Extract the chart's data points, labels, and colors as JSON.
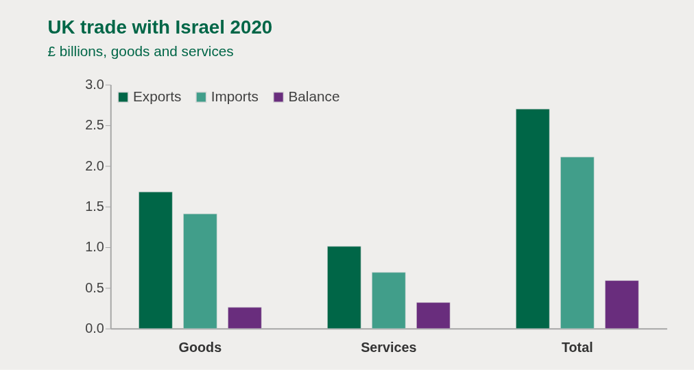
{
  "chart_data": {
    "type": "bar",
    "title": "UK trade with Israel 2020",
    "subtitle": "£ billions, goods and services",
    "categories": [
      "Goods",
      "Services",
      "Total"
    ],
    "series": [
      {
        "name": "Exports",
        "color": "#006647",
        "values": [
          1.68,
          1.01,
          2.7
        ]
      },
      {
        "name": "Imports",
        "color": "#419e8a",
        "values": [
          1.41,
          0.69,
          2.11
        ]
      },
      {
        "name": "Balance",
        "color": "#692d7d",
        "values": [
          0.26,
          0.32,
          0.59
        ]
      }
    ],
    "ylim": [
      0,
      3
    ],
    "yticks": [
      {
        "value": 0,
        "label": "0.0"
      },
      0.5,
      {
        "value": 1,
        "label": "1.0"
      },
      1.5,
      {
        "value": 2,
        "label": "2.0"
      },
      2.5,
      {
        "value": 3,
        "label": "3.0"
      }
    ],
    "grid": false,
    "legend": "top left"
  }
}
